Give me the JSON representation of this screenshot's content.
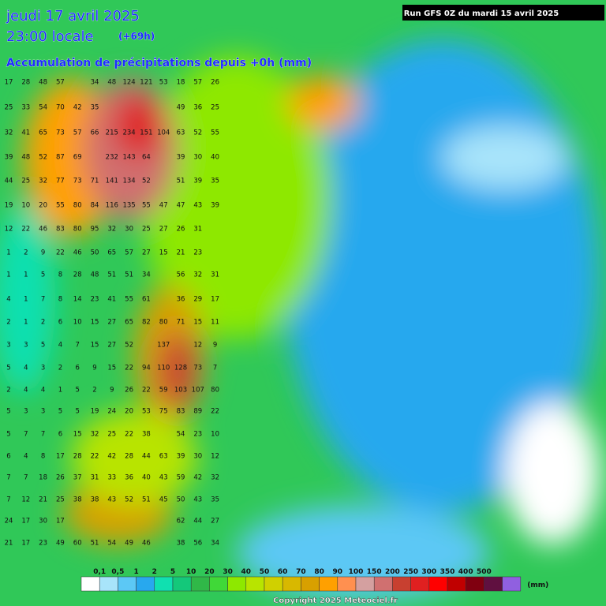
{
  "header": {
    "date": "jeudi 17 avril 2025",
    "time": "23:00 locale",
    "offset": "(+69h)",
    "subtitle": "Accumulation de précipitations depuis +0h (mm)",
    "run": "Run GFS 0Z du mardi 15 avril 2025"
  },
  "grid": {
    "rows": [
      [
        17,
        28,
        48,
        57,
        null,
        34,
        48,
        124,
        121,
        53,
        18,
        57,
        26
      ],
      [
        25,
        33,
        54,
        70,
        42,
        35,
        null,
        null,
        null,
        null,
        49,
        36,
        25
      ],
      [
        32,
        41,
        65,
        73,
        57,
        66,
        215,
        234,
        151,
        104,
        63,
        52,
        55
      ],
      [
        39,
        48,
        52,
        87,
        69,
        null,
        232,
        143,
        64,
        null,
        39,
        30,
        40
      ],
      [
        44,
        25,
        32,
        77,
        73,
        71,
        141,
        134,
        52,
        null,
        51,
        39,
        35
      ],
      [
        19,
        10,
        20,
        55,
        80,
        84,
        116,
        135,
        55,
        47,
        47,
        43,
        39
      ],
      [
        12,
        22,
        46,
        83,
        80,
        95,
        32,
        30,
        25,
        27,
        26,
        31,
        null
      ],
      [
        1,
        2,
        9,
        22,
        46,
        50,
        65,
        57,
        27,
        15,
        21,
        23,
        null
      ],
      [
        1,
        1,
        5,
        8,
        28,
        48,
        51,
        51,
        34,
        null,
        56,
        32,
        31
      ],
      [
        4,
        1,
        7,
        8,
        14,
        23,
        41,
        55,
        61,
        null,
        36,
        29,
        17
      ],
      [
        2,
        1,
        2,
        6,
        10,
        15,
        27,
        65,
        82,
        80,
        71,
        15,
        11
      ],
      [
        3,
        3,
        5,
        4,
        7,
        15,
        27,
        52,
        null,
        137,
        null,
        12,
        9
      ],
      [
        5,
        4,
        3,
        2,
        6,
        9,
        15,
        22,
        94,
        110,
        128,
        73,
        7
      ],
      [
        2,
        4,
        4,
        1,
        5,
        2,
        9,
        26,
        22,
        59,
        103,
        107,
        80
      ],
      [
        5,
        3,
        3,
        5,
        5,
        19,
        24,
        20,
        53,
        75,
        83,
        89,
        22
      ],
      [
        5,
        7,
        7,
        6,
        15,
        32,
        25,
        22,
        38,
        null,
        54,
        23,
        10
      ],
      [
        6,
        4,
        8,
        17,
        28,
        22,
        42,
        28,
        44,
        63,
        39,
        30,
        12
      ],
      [
        7,
        7,
        18,
        26,
        37,
        31,
        33,
        36,
        40,
        43,
        59,
        42,
        32
      ],
      [
        7,
        12,
        21,
        25,
        38,
        38,
        43,
        52,
        51,
        45,
        50,
        43,
        35
      ],
      [
        24,
        17,
        30,
        17,
        null,
        null,
        null,
        null,
        null,
        null,
        62,
        44,
        27
      ],
      [
        21,
        17,
        23,
        49,
        60,
        51,
        54,
        49,
        46,
        null,
        38,
        56,
        34
      ]
    ]
  },
  "legend": {
    "colors": [
      "#ffffff",
      "#a8e4fa",
      "#5cc8f5",
      "#28a8ee",
      "#10e0b0",
      "#14c87a",
      "#30b848",
      "#40d838",
      "#8ee800",
      "#b8e400",
      "#d0d000",
      "#d8b800",
      "#d8a000",
      "#ffa000",
      "#ff9050",
      "#d4a0a0",
      "#d07070",
      "#c84030",
      "#e02020",
      "#ff0000",
      "#c00000",
      "#800010",
      "#601040",
      "#9060e0"
    ],
    "labels": [
      "0,1",
      "0,5",
      "1",
      "2",
      "5",
      "10",
      "20",
      "30",
      "40",
      "50",
      "60",
      "70",
      "80",
      "90",
      "100",
      "150",
      "200",
      "250",
      "300",
      "350",
      "400",
      "500"
    ],
    "unit": "(mm)"
  },
  "footer": {
    "copyright": "Copyright 2025 Meteociel.fr"
  }
}
